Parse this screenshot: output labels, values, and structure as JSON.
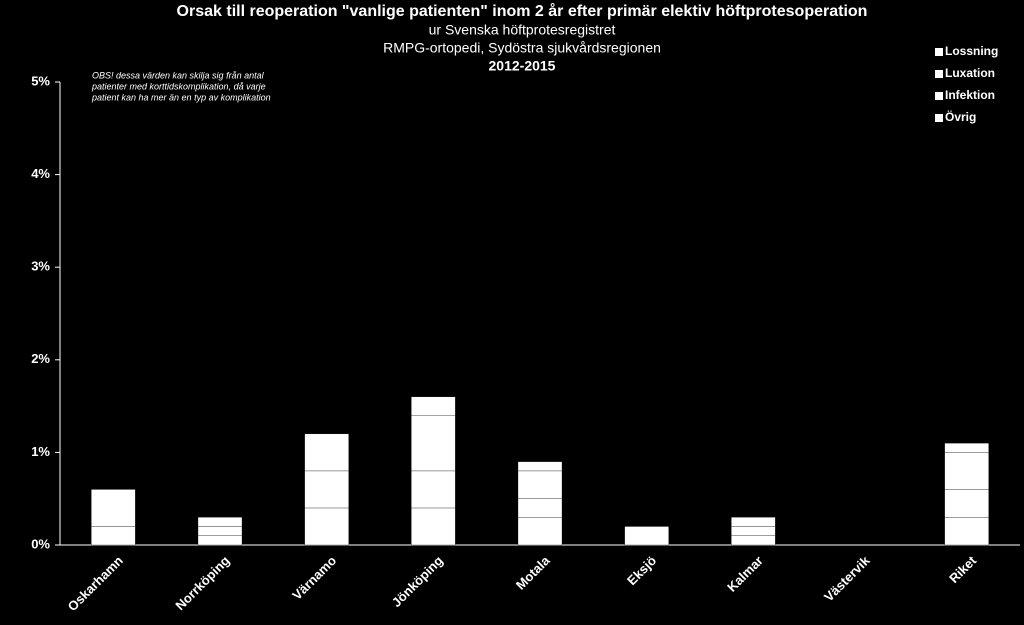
{
  "chart_data": {
    "type": "stacked_bar",
    "title": "Orsak till reoperation \"vanlige patienten\" inom 2 år efter primär elektiv höftprotesoperation",
    "subtitles": [
      "ur Svenska höftprotesregistret",
      "RMPG-ortopedi, Sydöstra sjukvårdsregionen"
    ],
    "period": "2012-2015",
    "note": [
      "OBS! dessa värden kan skilja sig från antal",
      "patienter med korttidskomplikation, då varje",
      "patient kan ha mer än en typ av komplikation"
    ],
    "categories": [
      "Oskarhamn",
      "Norrköping",
      "Värnamo",
      "Jönköping",
      "Motala",
      "Eksjö",
      "Kalmar",
      "Västervik",
      "Riket"
    ],
    "series": [
      {
        "name": "Lossning",
        "color": "#ffffff",
        "values": [
          0.2,
          0.1,
          0.4,
          0.4,
          0.3,
          0,
          0.1,
          0,
          0.3
        ]
      },
      {
        "name": "Luxation",
        "color": "#ffffff",
        "values": [
          0,
          0.1,
          0.4,
          0.4,
          0.2,
          0.2,
          0.1,
          0,
          0.3
        ]
      },
      {
        "name": "Infektion",
        "color": "#ffffff",
        "values": [
          0.4,
          0.1,
          0.4,
          0.6,
          0.3,
          0,
          0.1,
          0,
          0.4
        ]
      },
      {
        "name": "Övrig",
        "color": "#ffffff",
        "values": [
          0,
          0,
          0,
          0.2,
          0.1,
          0,
          0,
          0,
          0.1
        ]
      }
    ],
    "ylim": [
      0,
      5
    ],
    "yticks": [
      {
        "value": 0,
        "label": "0%"
      },
      {
        "value": 1,
        "label": "1%"
      },
      {
        "value": 2,
        "label": "2%"
      },
      {
        "value": 3,
        "label": "3%"
      },
      {
        "value": 4,
        "label": "4%"
      },
      {
        "value": 5,
        "label": "5%"
      }
    ],
    "legend": "top-right"
  }
}
